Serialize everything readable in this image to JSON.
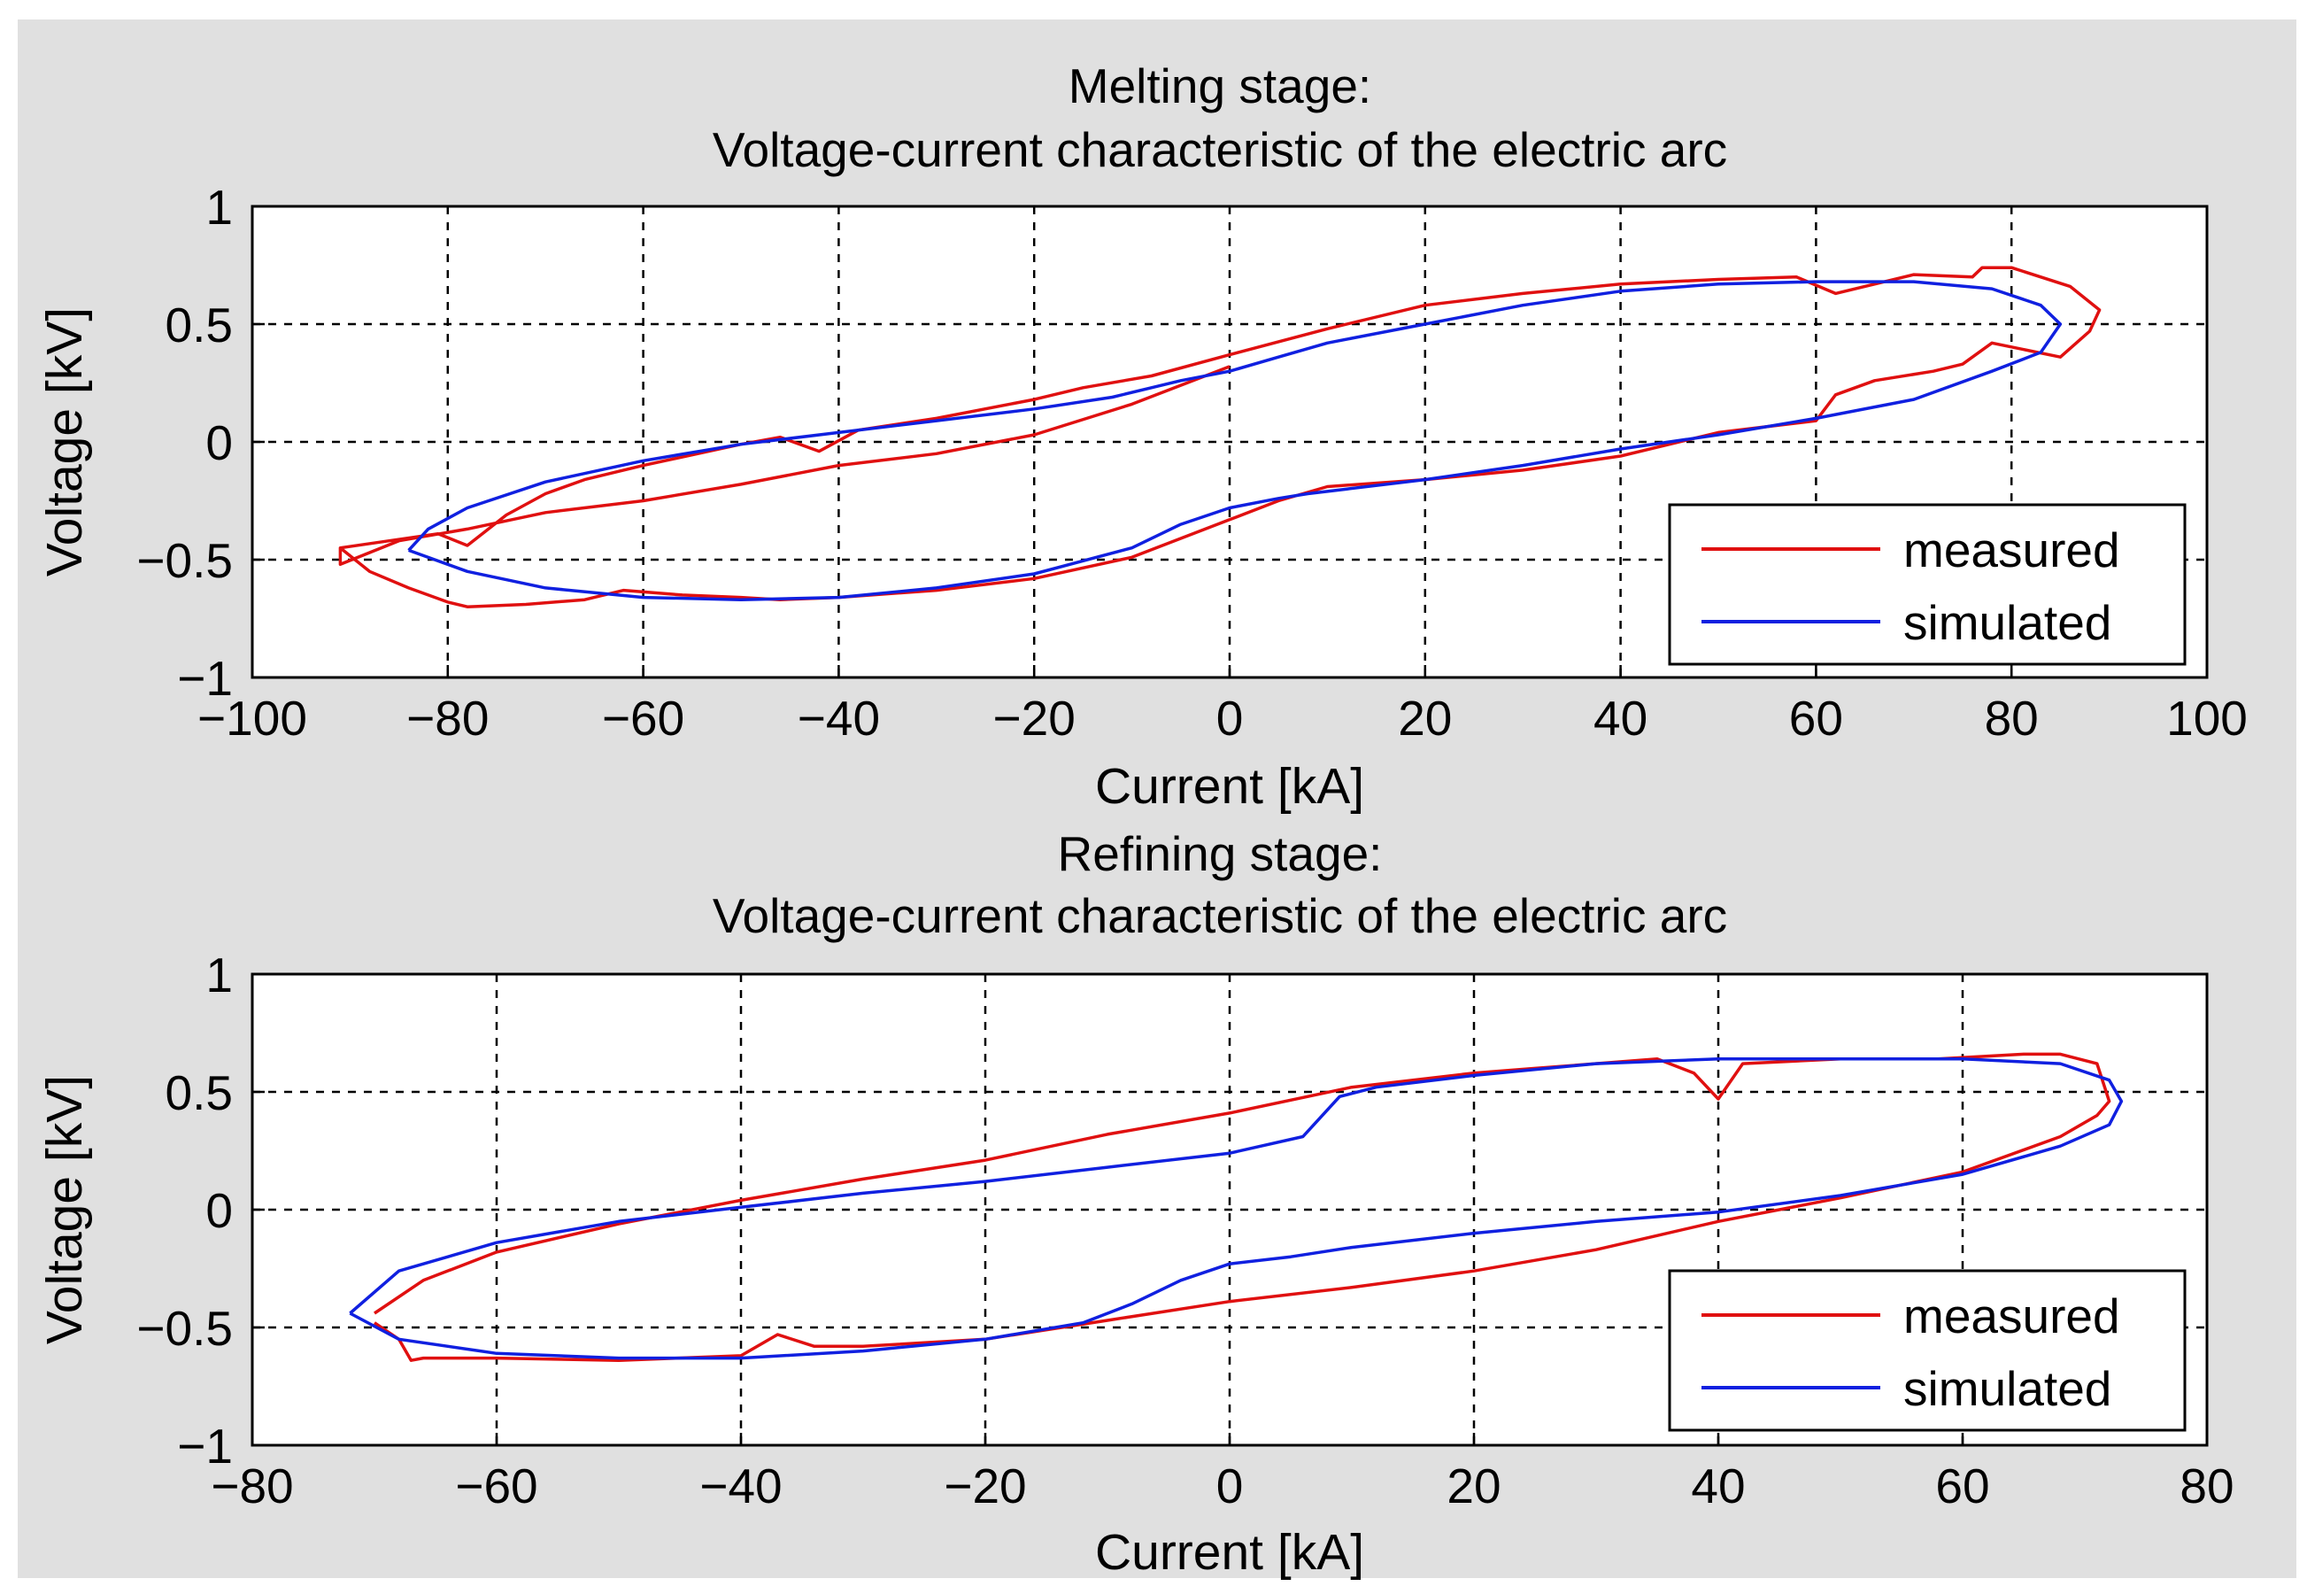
{
  "colors": {
    "figure_bg": "#e0e0e0",
    "axes_bg": "#ffffff",
    "measured": "#e01010",
    "simulated": "#1020e0",
    "grid": "#000000"
  },
  "chart_data": [
    {
      "type": "line",
      "title_line1": "Melting stage:",
      "title_line2": "Voltage-current characteristic of the electric arc",
      "xlabel": "Current [kA]",
      "ylabel": "Voltage [kV]",
      "xlim": [
        -100,
        100
      ],
      "ylim": [
        -1,
        1
      ],
      "xticks": [
        -100,
        -80,
        -60,
        -40,
        -20,
        0,
        20,
        40,
        60,
        80,
        100
      ],
      "yticks": [
        -1,
        -0.5,
        0,
        0.5,
        1
      ],
      "xtick_labels": [
        "−100",
        "−80",
        "−60",
        "−40",
        "−20",
        "0",
        "20",
        "40",
        "60",
        "80",
        "100"
      ],
      "ytick_labels": [
        "−1",
        "−0.5",
        "0",
        "0.5",
        "1"
      ],
      "grid": true,
      "legend": {
        "position": "bottom-right",
        "entries": [
          "measured",
          "simulated"
        ]
      },
      "series": [
        {
          "name": "measured",
          "color": "#e01010",
          "x": [
            -91,
            -88,
            -84,
            -80,
            -78,
            -72,
            -66,
            -62,
            -56,
            -50,
            -46,
            -40,
            -30,
            -20,
            -10,
            0,
            5,
            10,
            20,
            30,
            40,
            50,
            60,
            62,
            66,
            72,
            75,
            78,
            85,
            88,
            89,
            86,
            80,
            77,
            76,
            70,
            62,
            58,
            50,
            40,
            30,
            20,
            10,
            0,
            -8,
            -15,
            -20,
            -30,
            -38,
            -42,
            -46,
            -50,
            -60,
            -66,
            -70,
            -74,
            -78,
            -81,
            -86,
            -91,
            -91,
            -85,
            -78,
            -70,
            -60,
            -50,
            -40,
            -30,
            -20,
            -10,
            0
          ],
          "y": [
            -0.45,
            -0.55,
            -0.62,
            -0.68,
            -0.7,
            -0.69,
            -0.67,
            -0.63,
            -0.65,
            -0.66,
            -0.67,
            -0.66,
            -0.63,
            -0.58,
            -0.49,
            -0.33,
            -0.25,
            -0.19,
            -0.16,
            -0.12,
            -0.06,
            0.04,
            0.09,
            0.2,
            0.26,
            0.3,
            0.33,
            0.42,
            0.36,
            0.47,
            0.56,
            0.66,
            0.74,
            0.74,
            0.7,
            0.71,
            0.63,
            0.7,
            0.69,
            0.67,
            0.63,
            0.58,
            0.48,
            0.37,
            0.28,
            0.23,
            0.18,
            0.1,
            0.05,
            -0.04,
            0.02,
            -0.01,
            -0.1,
            -0.16,
            -0.22,
            -0.31,
            -0.44,
            -0.39,
            -0.42,
            -0.45,
            -0.52,
            -0.42,
            -0.37,
            -0.3,
            -0.25,
            -0.18,
            -0.1,
            -0.05,
            0.03,
            0.16,
            0.32
          ]
        },
        {
          "name": "simulated",
          "color": "#1020e0",
          "x": [
            -84,
            -78,
            -70,
            -60,
            -50,
            -40,
            -30,
            -20,
            -10,
            -5,
            0,
            5,
            8,
            12,
            20,
            30,
            40,
            50,
            60,
            70,
            78,
            83,
            85,
            83,
            78,
            70,
            60,
            50,
            40,
            30,
            20,
            10,
            5,
            0,
            -5,
            -8,
            -12,
            -20,
            -30,
            -40,
            -50,
            -60,
            -70,
            -78,
            -82,
            -84
          ],
          "y": [
            -0.46,
            -0.55,
            -0.62,
            -0.66,
            -0.67,
            -0.66,
            -0.62,
            -0.56,
            -0.45,
            -0.35,
            -0.28,
            -0.24,
            -0.22,
            -0.2,
            -0.16,
            -0.1,
            -0.03,
            0.03,
            0.1,
            0.18,
            0.3,
            0.38,
            0.5,
            0.58,
            0.65,
            0.68,
            0.68,
            0.67,
            0.64,
            0.58,
            0.5,
            0.42,
            0.36,
            0.3,
            0.26,
            0.23,
            0.19,
            0.14,
            0.09,
            0.04,
            -0.01,
            -0.08,
            -0.17,
            -0.28,
            -0.37,
            -0.46
          ]
        }
      ]
    },
    {
      "type": "line",
      "title_line1": "Refining stage:",
      "title_line2": "Voltage-current characteristic of the electric arc",
      "xlabel": "Current [kA]",
      "ylabel": "Voltage [kV]",
      "xlim": [
        -80,
        80
      ],
      "ylim": [
        -1,
        1
      ],
      "xticks": [
        -80,
        -60,
        -40,
        -20,
        0,
        20,
        40,
        60,
        80
      ],
      "yticks": [
        -1,
        -0.5,
        0,
        0.5,
        1
      ],
      "xtick_labels": [
        "−80",
        "−60",
        "−40",
        "−20",
        "0",
        "20",
        "40",
        "60",
        "80"
      ],
      "ytick_labels": [
        "−1",
        "−0.5",
        "0",
        "0.5",
        "1"
      ],
      "grid": true,
      "legend": {
        "position": "bottom-right",
        "entries": [
          "measured",
          "simulated"
        ]
      },
      "series": [
        {
          "name": "measured",
          "color": "#e01010",
          "x": [
            -70,
            -68,
            -67,
            -66,
            -60,
            -50,
            -40,
            -37,
            -34,
            -30,
            -20,
            -10,
            0,
            10,
            20,
            30,
            40,
            50,
            60,
            68,
            71,
            72,
            71,
            68,
            65,
            58,
            50,
            42,
            40,
            38,
            35,
            25,
            20,
            10,
            0,
            -10,
            -20,
            -30,
            -40,
            -50,
            -60,
            -66,
            -70
          ],
          "y": [
            -0.48,
            -0.55,
            -0.64,
            -0.63,
            -0.63,
            -0.64,
            -0.62,
            -0.53,
            -0.58,
            -0.58,
            -0.55,
            -0.47,
            -0.39,
            -0.33,
            -0.26,
            -0.17,
            -0.05,
            0.05,
            0.16,
            0.31,
            0.4,
            0.46,
            0.62,
            0.66,
            0.66,
            0.64,
            0.64,
            0.62,
            0.47,
            0.58,
            0.64,
            0.6,
            0.58,
            0.52,
            0.41,
            0.32,
            0.21,
            0.13,
            0.04,
            -0.06,
            -0.18,
            -0.3,
            -0.44
          ]
        },
        {
          "name": "simulated",
          "color": "#1020e0",
          "x": [
            -72,
            -68,
            -60,
            -50,
            -40,
            -30,
            -20,
            -12,
            -8,
            -4,
            0,
            5,
            10,
            20,
            30,
            40,
            50,
            60,
            68,
            72,
            73,
            72,
            68,
            60,
            50,
            40,
            30,
            20,
            12,
            9,
            6,
            0,
            -10,
            -20,
            -30,
            -40,
            -50,
            -60,
            -68,
            -72
          ],
          "y": [
            -0.44,
            -0.55,
            -0.61,
            -0.63,
            -0.63,
            -0.6,
            -0.55,
            -0.48,
            -0.4,
            -0.3,
            -0.23,
            -0.2,
            -0.16,
            -0.1,
            -0.05,
            -0.01,
            0.06,
            0.15,
            0.27,
            0.36,
            0.46,
            0.55,
            0.62,
            0.64,
            0.64,
            0.64,
            0.62,
            0.57,
            0.52,
            0.48,
            0.31,
            0.24,
            0.18,
            0.12,
            0.07,
            0.01,
            -0.05,
            -0.14,
            -0.26,
            -0.44
          ]
        }
      ]
    }
  ]
}
